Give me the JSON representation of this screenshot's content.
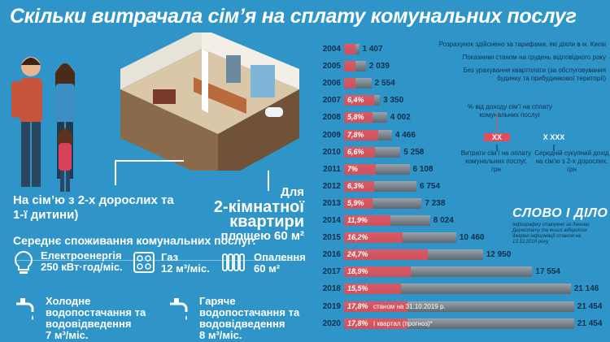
{
  "title": "Скільки витрачала сім’я на сплату комунальних послуг",
  "captions": {
    "family": "На сім’ю з 2-х дорослих та 1-ї дитини)",
    "flat_prefix": "Для",
    "flat_main": "2-кімнатної квартири",
    "flat_area": "площею 60 м²"
  },
  "consumption": {
    "title": "Середнє споживання комунальних послуг:",
    "items": [
      {
        "icon": "lightbulb-icon",
        "name": "Електроенергія",
        "value": "250 кВт·год/міс."
      },
      {
        "icon": "gas-stove-icon",
        "name": "Газ",
        "value": "12 м³/міс."
      },
      {
        "icon": "radiator-icon",
        "name": "Опалення",
        "value": "60 м²"
      },
      {
        "icon": "cold-tap-icon",
        "name": "Холодне водопостачання та водовідведення",
        "value": "7 м³/міс."
      },
      {
        "icon": "hot-tap-icon",
        "name": "Гаряче водопостачання та водовідведення",
        "value": "8 м³/міс."
      }
    ]
  },
  "notes": {
    "n1": "Розрахунок здійснено за тарифами, які діяли в м. Києві",
    "n2": "Показники станом на грудень відповідного року",
    "n3": "Без урахування квартплати (за обслуговування будинку та прибудинкової території)"
  },
  "legend": {
    "pct_label": "% від доходу сім’ї на сплату комунальних послуг",
    "xx": "XX",
    "xxx": "X XXX",
    "expense_label": "Витрати сім’ї на оплату комунальних послуг, грн",
    "income_label": "Середній сукупний дохід на сім’ю з 2-х дорослих, грн"
  },
  "logo": {
    "name": "СЛОВО І ДІЛО",
    "sub": "Інфографіку створено за даними Держстату та інших відкритих джерел інформації станом на 13.12.2019 року"
  },
  "colors": {
    "background": "#2f95c9",
    "accent": "#e24d59",
    "dark": "#0f2f4a"
  },
  "chart_data": {
    "type": "bar",
    "categories": [
      "2004",
      "2005",
      "2006",
      "2007",
      "2008",
      "2009",
      "2010",
      "2011",
      "2012",
      "2013",
      "2014",
      "2015",
      "2016",
      "2017",
      "2018",
      "2019",
      "2020"
    ],
    "series": [
      {
        "values": [
          1407,
          2039,
          2554,
          3350,
          4002,
          4466,
          5258,
          6108,
          6754,
          7238,
          8024,
          10460,
          12950,
          17554,
          21146,
          21454,
          21454
        ]
      }
    ],
    "pct_labels": [
      "",
      "",
      "",
      "6,4%",
      "5,8%",
      "7,8%",
      "6,6%",
      "7%",
      "6,3%",
      "5,9%",
      "11,9%",
      "16,2%",
      "24,7%",
      "18,9%",
      "15,5%",
      "17,8%",
      "17,8%"
    ],
    "year_notes": {
      "2019": "станом на 31.10.2019 р.",
      "2020": "І квартал (прогноз)*"
    },
    "value_labels": [
      "1 407",
      "2 039",
      "2 554",
      "3 350",
      "4 002",
      "4 466",
      "5 258",
      "6 108",
      "6 754",
      "7 238",
      "8 024",
      "10 460",
      "12 950",
      "17 554",
      "21 146",
      "21 454",
      "21 454"
    ],
    "ylim": [
      0,
      22000
    ]
  }
}
